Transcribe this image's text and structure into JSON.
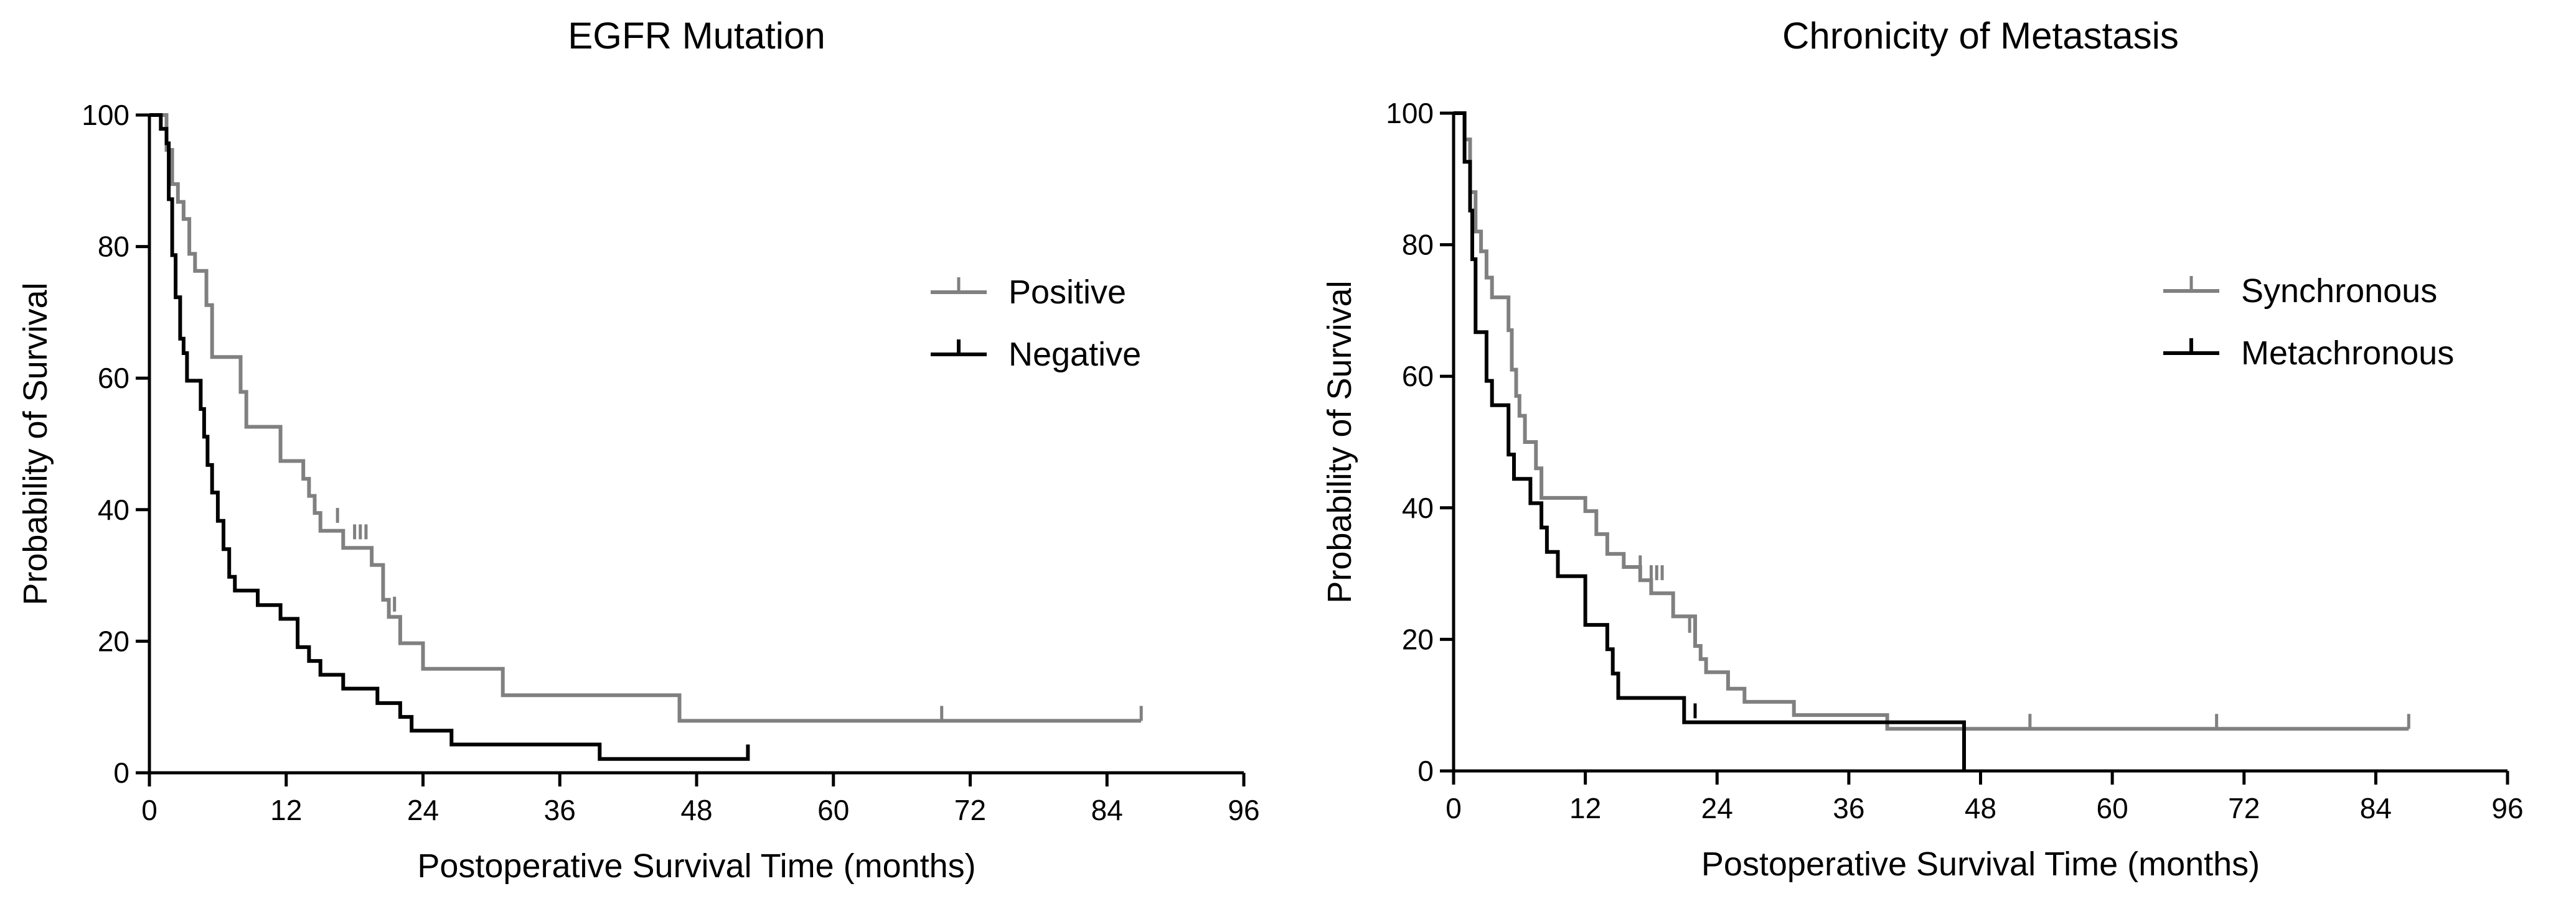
{
  "chart_data": [
    {
      "type": "line",
      "subtype": "kaplan-meier",
      "title": "EGFR Mutation",
      "xlabel": "Postoperative Survival Time (months)",
      "ylabel": "Probability of Survival",
      "xlim": [
        0,
        96
      ],
      "ylim": [
        0,
        100
      ],
      "xticks": [
        0,
        12,
        24,
        36,
        48,
        60,
        72,
        84,
        96
      ],
      "yticks": [
        0,
        20,
        40,
        60,
        80,
        100
      ],
      "grid": false,
      "legend_position": "right",
      "series": [
        {
          "name": "Positive",
          "color": "#808080",
          "steps": [
            [
              0,
              100
            ],
            [
              1.5,
              100
            ],
            [
              1.5,
              94.7
            ],
            [
              2,
              94.7
            ],
            [
              2,
              89.5
            ],
            [
              2.5,
              89.5
            ],
            [
              2.5,
              86.8
            ],
            [
              3,
              86.8
            ],
            [
              3,
              84.2
            ],
            [
              3.5,
              84.2
            ],
            [
              3.5,
              78.9
            ],
            [
              4,
              78.9
            ],
            [
              4,
              76.3
            ],
            [
              5,
              76.3
            ],
            [
              5,
              71.1
            ],
            [
              5.5,
              71.1
            ],
            [
              5.5,
              63.2
            ],
            [
              8,
              63.2
            ],
            [
              8,
              57.9
            ],
            [
              8.5,
              57.9
            ],
            [
              8.5,
              52.6
            ],
            [
              11.5,
              52.6
            ],
            [
              11.5,
              47.4
            ],
            [
              13.5,
              47.4
            ],
            [
              13.5,
              44.7
            ],
            [
              14,
              44.7
            ],
            [
              14,
              42.1
            ],
            [
              14.5,
              42.1
            ],
            [
              14.5,
              39.5
            ],
            [
              15,
              39.5
            ],
            [
              15,
              36.8
            ],
            [
              17,
              36.8
            ],
            [
              17,
              34.2
            ],
            [
              19.5,
              34.2
            ],
            [
              19.5,
              31.6
            ],
            [
              20.5,
              31.6
            ],
            [
              20.5,
              26.3
            ],
            [
              21,
              26.3
            ],
            [
              21,
              23.7
            ],
            [
              22,
              23.7
            ],
            [
              22,
              19.7
            ],
            [
              24,
              19.7
            ],
            [
              24,
              15.8
            ],
            [
              31,
              15.8
            ],
            [
              31,
              11.8
            ],
            [
              46.5,
              11.8
            ],
            [
              46.5,
              7.9
            ],
            [
              87,
              7.9
            ]
          ],
          "censored": [
            [
              16.5,
              38
            ],
            [
              18,
              35.5
            ],
            [
              18.5,
              35.5
            ],
            [
              19,
              35.5
            ],
            [
              21.5,
              24.5
            ],
            [
              69.5,
              7.9
            ],
            [
              87,
              7.9
            ]
          ]
        },
        {
          "name": "Negative",
          "color": "#000000",
          "steps": [
            [
              0,
              100
            ],
            [
              1,
              100
            ],
            [
              1,
              97.9
            ],
            [
              1.5,
              97.9
            ],
            [
              1.5,
              95.7
            ],
            [
              1.7,
              95.7
            ],
            [
              1.7,
              87.2
            ],
            [
              2,
              87.2
            ],
            [
              2,
              78.7
            ],
            [
              2.3,
              78.7
            ],
            [
              2.3,
              72.3
            ],
            [
              2.7,
              72.3
            ],
            [
              2.7,
              66
            ],
            [
              3,
              66
            ],
            [
              3,
              63.8
            ],
            [
              3.3,
              63.8
            ],
            [
              3.3,
              59.6
            ],
            [
              4.5,
              59.6
            ],
            [
              4.5,
              55.3
            ],
            [
              4.8,
              55.3
            ],
            [
              4.8,
              51.1
            ],
            [
              5.1,
              51.1
            ],
            [
              5.1,
              46.8
            ],
            [
              5.5,
              46.8
            ],
            [
              5.5,
              42.6
            ],
            [
              6,
              42.6
            ],
            [
              6,
              38.3
            ],
            [
              6.5,
              38.3
            ],
            [
              6.5,
              34
            ],
            [
              7,
              34
            ],
            [
              7,
              29.8
            ],
            [
              7.5,
              29.8
            ],
            [
              7.5,
              27.7
            ],
            [
              9.5,
              27.7
            ],
            [
              9.5,
              25.5
            ],
            [
              11.5,
              25.5
            ],
            [
              11.5,
              23.4
            ],
            [
              13,
              23.4
            ],
            [
              13,
              19.1
            ],
            [
              14,
              19.1
            ],
            [
              14,
              17
            ],
            [
              15,
              17
            ],
            [
              15,
              14.9
            ],
            [
              17,
              14.9
            ],
            [
              17,
              12.8
            ],
            [
              20,
              12.8
            ],
            [
              20,
              10.6
            ],
            [
              22,
              10.6
            ],
            [
              22,
              8.5
            ],
            [
              23,
              8.5
            ],
            [
              23,
              6.4
            ],
            [
              26.5,
              6.4
            ],
            [
              26.5,
              4.3
            ],
            [
              39.5,
              4.3
            ],
            [
              39.5,
              2.1
            ],
            [
              52.5,
              2.1
            ],
            [
              52.5,
              4.3
            ]
          ],
          "censored": []
        }
      ]
    },
    {
      "type": "line",
      "subtype": "kaplan-meier",
      "title": "Chronicity of Metastasis",
      "xlabel": "Postoperative Survival Time (months)",
      "ylabel": "Probability of Survival",
      "xlim": [
        0,
        96
      ],
      "ylim": [
        0,
        100
      ],
      "xticks": [
        0,
        12,
        24,
        36,
        48,
        60,
        72,
        84,
        96
      ],
      "yticks": [
        0,
        20,
        40,
        60,
        80,
        100
      ],
      "grid": false,
      "legend_position": "right",
      "series": [
        {
          "name": "Synchronous",
          "color": "#808080",
          "steps": [
            [
              0,
              100
            ],
            [
              1,
              100
            ],
            [
              1,
              96
            ],
            [
              1.5,
              96
            ],
            [
              1.5,
              88
            ],
            [
              2,
              88
            ],
            [
              2,
              82
            ],
            [
              2.5,
              82
            ],
            [
              2.5,
              79
            ],
            [
              3,
              79
            ],
            [
              3,
              75
            ],
            [
              3.5,
              75
            ],
            [
              3.5,
              72
            ],
            [
              5,
              72
            ],
            [
              5,
              67
            ],
            [
              5.3,
              67
            ],
            [
              5.3,
              61
            ],
            [
              5.7,
              61
            ],
            [
              5.7,
              57
            ],
            [
              6,
              57
            ],
            [
              6,
              54
            ],
            [
              6.5,
              54
            ],
            [
              6.5,
              50
            ],
            [
              7.5,
              50
            ],
            [
              7.5,
              46
            ],
            [
              8,
              46
            ],
            [
              8,
              41.5
            ],
            [
              12,
              41.5
            ],
            [
              12,
              39.5
            ],
            [
              13,
              39.5
            ],
            [
              13,
              36
            ],
            [
              14,
              36
            ],
            [
              14,
              33
            ],
            [
              15.5,
              33
            ],
            [
              15.5,
              31
            ],
            [
              17,
              31
            ],
            [
              17,
              29
            ],
            [
              18,
              29
            ],
            [
              18,
              27
            ],
            [
              20,
              27
            ],
            [
              20,
              23.5
            ],
            [
              22,
              23.5
            ],
            [
              22,
              19
            ],
            [
              22.5,
              19
            ],
            [
              22.5,
              17
            ],
            [
              23,
              17
            ],
            [
              23,
              15
            ],
            [
              25,
              15
            ],
            [
              25,
              12.5
            ],
            [
              26.5,
              12.5
            ],
            [
              26.5,
              10.5
            ],
            [
              31,
              10.5
            ],
            [
              31,
              8.5
            ],
            [
              39.5,
              8.5
            ],
            [
              39.5,
              6.4
            ],
            [
              87,
              6.4
            ]
          ],
          "censored": [
            [
              17,
              30.5
            ],
            [
              18,
              29
            ],
            [
              18.5,
              29
            ],
            [
              19,
              29
            ],
            [
              21.5,
              21
            ],
            [
              52.5,
              6.4
            ],
            [
              69.5,
              6.4
            ],
            [
              87,
              6.4
            ]
          ]
        },
        {
          "name": "Metachronous",
          "color": "#000000",
          "steps": [
            [
              0,
              100
            ],
            [
              1,
              100
            ],
            [
              1,
              92.6
            ],
            [
              1.5,
              92.6
            ],
            [
              1.5,
              85.2
            ],
            [
              1.7,
              85.2
            ],
            [
              1.7,
              77.8
            ],
            [
              2,
              77.8
            ],
            [
              2,
              66.7
            ],
            [
              3,
              66.7
            ],
            [
              3,
              59.3
            ],
            [
              3.5,
              59.3
            ],
            [
              3.5,
              55.6
            ],
            [
              5,
              55.6
            ],
            [
              5,
              48.1
            ],
            [
              5.5,
              48.1
            ],
            [
              5.5,
              44.4
            ],
            [
              7,
              44.4
            ],
            [
              7,
              40.7
            ],
            [
              8,
              40.7
            ],
            [
              8,
              37
            ],
            [
              8.5,
              37
            ],
            [
              8.5,
              33.3
            ],
            [
              9.5,
              33.3
            ],
            [
              9.5,
              29.6
            ],
            [
              12,
              29.6
            ],
            [
              12,
              22.2
            ],
            [
              14,
              22.2
            ],
            [
              14,
              18.5
            ],
            [
              14.5,
              18.5
            ],
            [
              14.5,
              14.8
            ],
            [
              15,
              14.8
            ],
            [
              15,
              11.1
            ],
            [
              21,
              11.1
            ],
            [
              21,
              7.4
            ],
            [
              46.5,
              7.4
            ],
            [
              46.5,
              0
            ]
          ],
          "censored": [
            [
              22,
              8
            ]
          ]
        }
      ]
    }
  ]
}
